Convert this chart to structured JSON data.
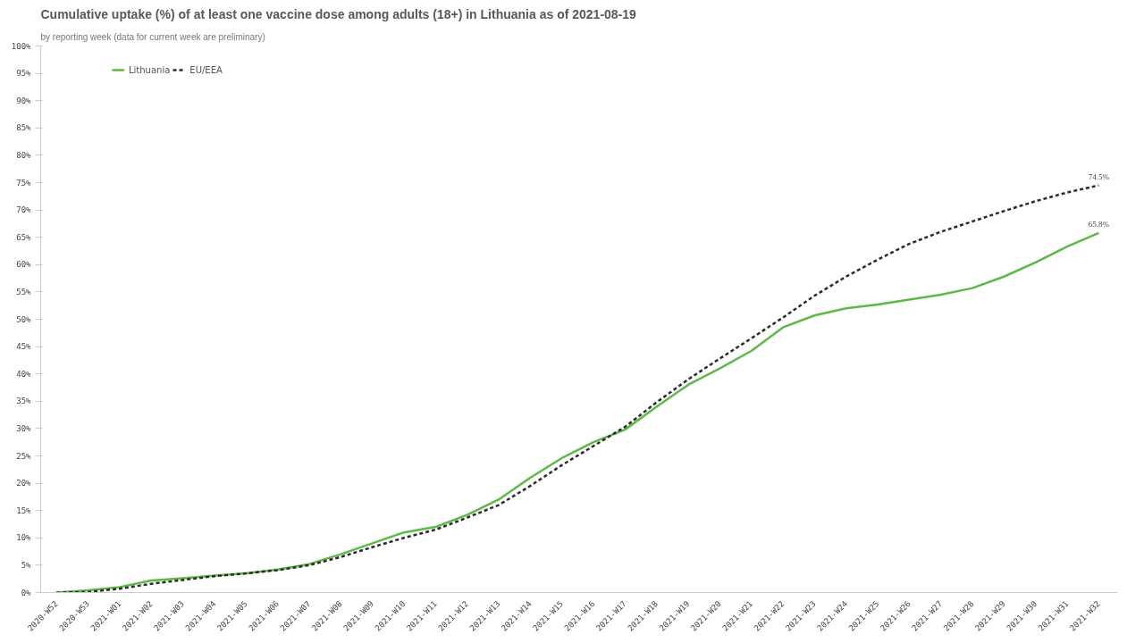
{
  "chart_data": {
    "type": "line",
    "title": "Cumulative uptake (%) of at least one vaccine dose among adults (18+) in Lithuania as of 2021-08-19",
    "subtitle": "by reporting week (data for current week are preliminary)",
    "categories": [
      "2020-W52",
      "2020-W53",
      "2021-W01",
      "2021-W02",
      "2021-W03",
      "2021-W04",
      "2021-W05",
      "2021-W06",
      "2021-W07",
      "2021-W08",
      "2021-W09",
      "2021-W10",
      "2021-W11",
      "2021-W12",
      "2021-W13",
      "2021-W14",
      "2021-W15",
      "2021-W16",
      "2021-W17",
      "2021-W18",
      "2021-W19",
      "2021-W20",
      "2021-W21",
      "2021-W22",
      "2021-W23",
      "2021-W24",
      "2021-W25",
      "2021-W26",
      "2021-W27",
      "2021-W28",
      "2021-W29",
      "2021-W30",
      "2021-W31",
      "2021-W32"
    ],
    "series": [
      {
        "name": "Lithuania",
        "color": "#5cb946",
        "line_style": "solid",
        "values": [
          0,
          0.4,
          1,
          2.2,
          2.6,
          3.1,
          3.5,
          4.2,
          5.2,
          7.0,
          9.0,
          11.0,
          12.0,
          14.2,
          17.0,
          21.0,
          24.6,
          27.5,
          29.8,
          34.0,
          38.0,
          41.0,
          44.2,
          48.5,
          50.7,
          52.0,
          52.7,
          53.6,
          54.5,
          55.7,
          57.8,
          60.4,
          63.3,
          65.8
        ],
        "value_labels": [
          null,
          null,
          null,
          null,
          null,
          null,
          null,
          null,
          null,
          null,
          null,
          null,
          null,
          null,
          null,
          null,
          null,
          null,
          null,
          null,
          null,
          null,
          null,
          null,
          null,
          null,
          null,
          null,
          null,
          null,
          null,
          null,
          null,
          "65.8%"
        ]
      },
      {
        "name": "EU/EEA",
        "color": "#2b2b2b",
        "line_style": "dashed",
        "values": [
          0,
          0.1,
          0.7,
          1.6,
          2.3,
          3.0,
          3.5,
          4.1,
          5.0,
          6.5,
          8.3,
          10.0,
          11.5,
          13.7,
          16.0,
          19.5,
          23.3,
          26.8,
          30.3,
          34.8,
          39.0,
          42.8,
          46.5,
          50.3,
          54.3,
          57.8,
          60.9,
          63.8,
          66.0,
          67.9,
          69.8,
          71.6,
          73.2,
          74.5
        ],
        "value_labels": [
          null,
          null,
          null,
          null,
          null,
          null,
          null,
          null,
          null,
          null,
          null,
          null,
          null,
          null,
          null,
          null,
          null,
          null,
          null,
          null,
          null,
          null,
          null,
          null,
          null,
          null,
          null,
          null,
          null,
          null,
          null,
          null,
          null,
          "74.5%"
        ]
      }
    ],
    "ylim": [
      0,
      100
    ],
    "yticks": [
      {
        "value": 0,
        "label": "0%"
      },
      {
        "value": 5,
        "label": "5%"
      },
      {
        "value": 10,
        "label": "10%"
      },
      {
        "value": 15,
        "label": "15%"
      },
      {
        "value": 20,
        "label": "20%"
      },
      {
        "value": 25,
        "label": "25%"
      },
      {
        "value": 30,
        "label": "30%"
      },
      {
        "value": 35,
        "label": "35%"
      },
      {
        "value": 40,
        "label": "40%"
      },
      {
        "value": 45,
        "label": "45%"
      },
      {
        "value": 50,
        "label": "50%"
      },
      {
        "value": 55,
        "label": "55%"
      },
      {
        "value": 60,
        "label": "60%"
      },
      {
        "value": 65,
        "label": "65%"
      },
      {
        "value": 70,
        "label": "70%"
      },
      {
        "value": 75,
        "label": "75%"
      },
      {
        "value": 80,
        "label": "80%"
      },
      {
        "value": 85,
        "label": "85%"
      },
      {
        "value": 90,
        "label": "90%"
      },
      {
        "value": 95,
        "label": "95%"
      },
      {
        "value": 100,
        "label": "100%"
      }
    ],
    "grid": false,
    "legend": "top left",
    "marker": "none"
  }
}
